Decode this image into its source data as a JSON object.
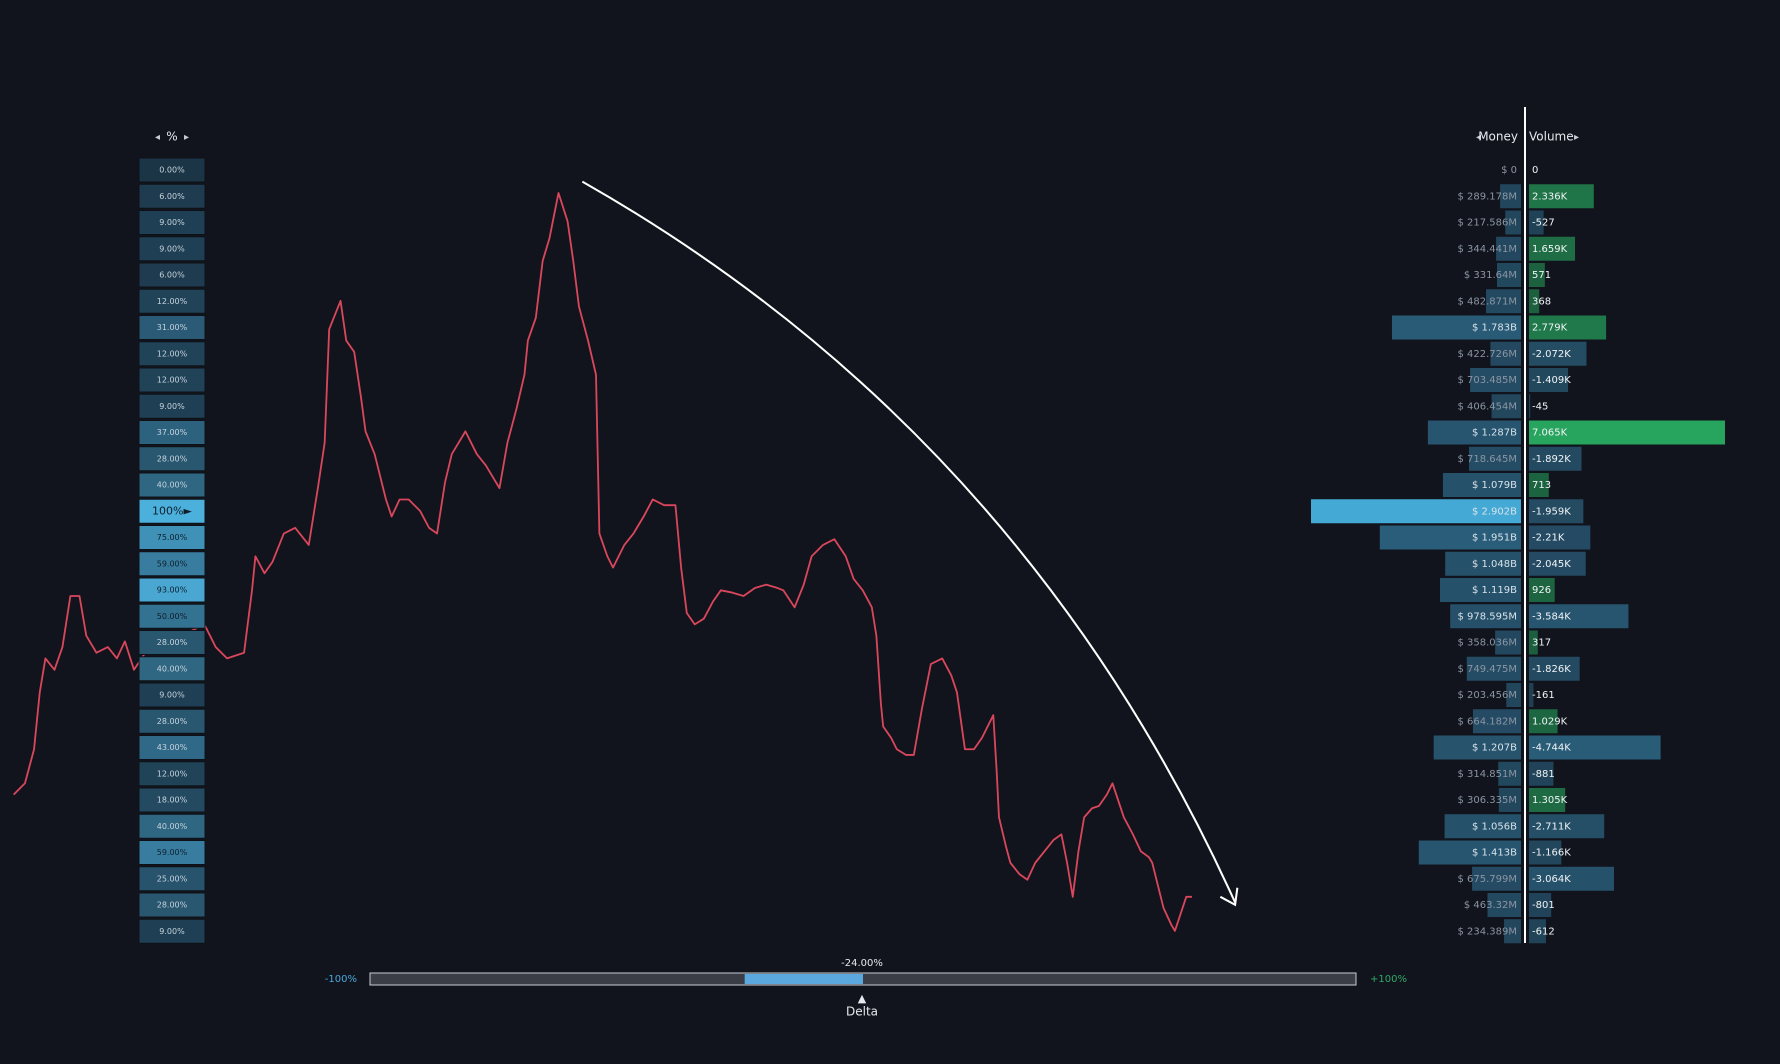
{
  "percent_column": {
    "header": "%",
    "low_color": "#1b3446",
    "high_color": "#4cb0dc",
    "cells": [
      {
        "value": 0,
        "label": "0.00%"
      },
      {
        "value": 6,
        "label": "6.00%"
      },
      {
        "value": 9,
        "label": "9.00%"
      },
      {
        "value": 9,
        "label": "9.00%"
      },
      {
        "value": 6,
        "label": "6.00%"
      },
      {
        "value": 12,
        "label": "12.00%"
      },
      {
        "value": 31,
        "label": "31.00%"
      },
      {
        "value": 12,
        "label": "12.00%"
      },
      {
        "value": 12,
        "label": "12.00%"
      },
      {
        "value": 9,
        "label": "9.00%"
      },
      {
        "value": 37,
        "label": "37.00%"
      },
      {
        "value": 28,
        "label": "28.00%"
      },
      {
        "value": 40,
        "label": "40.00%"
      },
      {
        "value": 100,
        "label": "100%►"
      },
      {
        "value": 75,
        "label": "75.00%"
      },
      {
        "value": 59,
        "label": "59.00%"
      },
      {
        "value": 93,
        "label": "93.00%"
      },
      {
        "value": 50,
        "label": "50.00%"
      },
      {
        "value": 28,
        "label": "28.00%"
      },
      {
        "value": 40,
        "label": "40.00%"
      },
      {
        "value": 9,
        "label": "9.00%"
      },
      {
        "value": 28,
        "label": "28.00%"
      },
      {
        "value": 43,
        "label": "43.00%"
      },
      {
        "value": 12,
        "label": "12.00%"
      },
      {
        "value": 18,
        "label": "18.00%"
      },
      {
        "value": 40,
        "label": "40.00%"
      },
      {
        "value": 59,
        "label": "59.00%"
      },
      {
        "value": 25,
        "label": "25.00%"
      },
      {
        "value": 28,
        "label": "28.00%"
      },
      {
        "value": 9,
        "label": "9.00%"
      }
    ]
  },
  "money_column": {
    "header": "Money",
    "color": "#2f6a8a",
    "max_color": "#45a9d6",
    "cells": [
      {
        "value": 0,
        "label": "$ 0"
      },
      {
        "value": 289178000,
        "label": "$ 289.178M"
      },
      {
        "value": 217586000,
        "label": "$ 217.586M"
      },
      {
        "value": 344441000,
        "label": "$ 344.441M"
      },
      {
        "value": 331640000,
        "label": "$ 331.64M"
      },
      {
        "value": 482871000,
        "label": "$ 482.871M"
      },
      {
        "value": 1783000000,
        "label": "$ 1.783B"
      },
      {
        "value": 422726000,
        "label": "$ 422.726M"
      },
      {
        "value": 703485000,
        "label": "$ 703.485M"
      },
      {
        "value": 406454000,
        "label": "$ 406.454M"
      },
      {
        "value": 1287000000,
        "label": "$ 1.287B"
      },
      {
        "value": 718645000,
        "label": "$ 718.645M"
      },
      {
        "value": 1079000000,
        "label": "$ 1.079B"
      },
      {
        "value": 2902000000,
        "label": "$ 2.902B"
      },
      {
        "value": 1951000000,
        "label": "$ 1.951B"
      },
      {
        "value": 1048000000,
        "label": "$ 1.048B"
      },
      {
        "value": 1119000000,
        "label": "$ 1.119B"
      },
      {
        "value": 978595000,
        "label": "$ 978.595M"
      },
      {
        "value": 358036000,
        "label": "$ 358.036M"
      },
      {
        "value": 749475000,
        "label": "$ 749.475M"
      },
      {
        "value": 203456000,
        "label": "$ 203.456M"
      },
      {
        "value": 664182000,
        "label": "$ 664.182M"
      },
      {
        "value": 1207000000,
        "label": "$ 1.207B"
      },
      {
        "value": 314851000,
        "label": "$ 314.851M"
      },
      {
        "value": 306335000,
        "label": "$ 306.335M"
      },
      {
        "value": 1056000000,
        "label": "$ 1.056B"
      },
      {
        "value": 1413000000,
        "label": "$ 1.413B"
      },
      {
        "value": 675799000,
        "label": "$ 675.799M"
      },
      {
        "value": 463320000,
        "label": "$ 463.32M"
      },
      {
        "value": 234389000,
        "label": "$ 234.389M"
      }
    ]
  },
  "volume_column": {
    "header": "Volume",
    "positive_color": "#27a55e",
    "negative_color": "#2f6a8a",
    "cells": [
      0,
      {
        "value": 2336,
        "label": "2.336K"
      },
      -527,
      {
        "value": 1659,
        "label": "1.659K"
      },
      571,
      368,
      {
        "value": 2779,
        "label": "2.779K"
      },
      {
        "value": -2072,
        "label": "-2.072K"
      },
      {
        "value": -1409,
        "label": "-1.409K"
      },
      -45,
      {
        "value": 7065,
        "label": "7.065K"
      },
      {
        "value": -1892,
        "label": "-1.892K"
      },
      713,
      {
        "value": -1959,
        "label": "-1.959K"
      },
      {
        "value": -2210,
        "label": "-2.21K"
      },
      {
        "value": -2045,
        "label": "-2.045K"
      },
      926,
      {
        "value": -3584,
        "label": "-3.584K"
      },
      317,
      {
        "value": -1826,
        "label": "-1.826K"
      },
      -161,
      {
        "value": 1029,
        "label": "1.029K"
      },
      {
        "value": -4744,
        "label": "-4.744K"
      },
      -881,
      {
        "value": 1305,
        "label": "1.305K"
      },
      {
        "value": -2711,
        "label": "-2.711K"
      },
      {
        "value": -1166,
        "label": "-1.166K"
      },
      {
        "value": -3064,
        "label": "-3.064K"
      },
      -801,
      -612
    ]
  },
  "delta": {
    "label": "Delta",
    "value": {
      "value": -24,
      "label": "-24.00%"
    },
    "min": {
      "value": -100,
      "label": "-100%"
    },
    "max": {
      "value": 100,
      "label": "+100%"
    },
    "color": "#5aa8de"
  }
}
